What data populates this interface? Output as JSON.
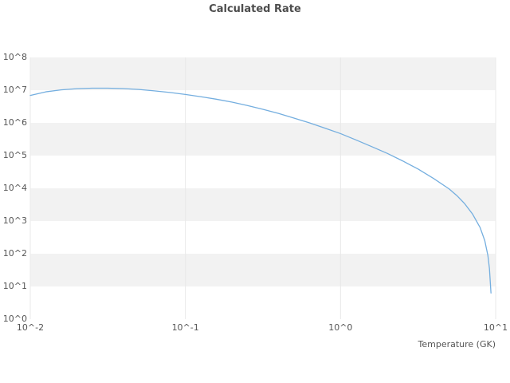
{
  "title": "Calculated Rate",
  "x_axis_title": "Temperature (GK)",
  "chart_data": {
    "type": "line",
    "title": "Calculated Rate",
    "xlabel": "Temperature (GK)",
    "ylabel": "",
    "x_scale": "log",
    "y_scale": "log",
    "xlim": [
      0.01,
      10
    ],
    "ylim": [
      1,
      100000000
    ],
    "xlim_log10": [
      -2,
      1
    ],
    "ylim_log10": [
      0,
      8
    ],
    "x_tick_labels": [
      "10^-2",
      "10^-1",
      "10^0",
      "10^1"
    ],
    "y_tick_labels": [
      "10^0",
      "10^1",
      "10^2",
      "10^3",
      "10^4",
      "10^5",
      "10^6",
      "10^7",
      "10^8"
    ],
    "grid": "alternating horizontal decade bands, faint vertical decade lines",
    "legend": "none",
    "colors": {
      "line": "#74aedf",
      "band": "#f2f2f2",
      "grid_line": "#e9e9e9",
      "tick_text": "#555555",
      "title_text": "#4d4d4d"
    },
    "series": [
      {
        "name": "calculated-rate",
        "x": [
          0.01,
          0.0126,
          0.0158,
          0.02,
          0.0251,
          0.0316,
          0.0398,
          0.0501,
          0.0631,
          0.0794,
          0.1,
          0.126,
          0.158,
          0.2,
          0.251,
          0.316,
          0.398,
          0.501,
          0.631,
          0.794,
          1.0,
          1.26,
          1.58,
          2.0,
          2.51,
          3.16,
          3.98,
          5.01,
          5.62,
          6.31,
          7.08,
          7.94,
          8.51,
          8.91,
          9.12,
          9.33
        ],
        "y": [
          6900000.0,
          8900000.0,
          10200000.0,
          11100000.0,
          11500000.0,
          11500000.0,
          11200000.0,
          10500000.0,
          9500000.0,
          8500000.0,
          7400000.0,
          6300000.0,
          5300000.0,
          4300000.0,
          3400000.0,
          2600000.0,
          1950000.0,
          1400000.0,
          1000000.0,
          690000.0,
          470000.0,
          300000.0,
          190000.0,
          117000.0,
          69000.0,
          39000.0,
          20000.0,
          9600.0,
          6000.0,
          3400.0,
          1660.0,
          631,
          251,
          89,
          35,
          6.3
        ]
      }
    ]
  }
}
